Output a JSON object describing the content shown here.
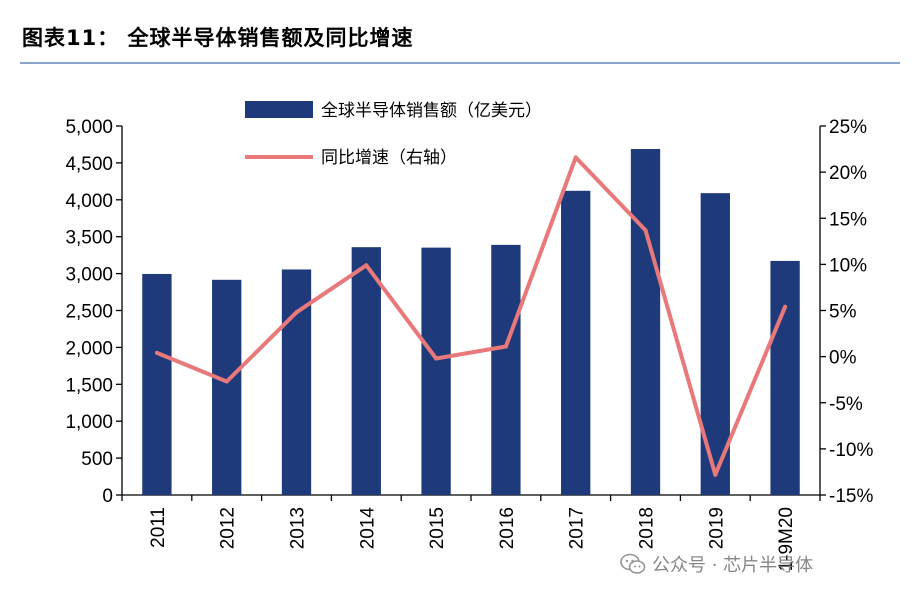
{
  "title": "图表11：  全球半导体销售额及同比增速",
  "watermark": "公众号 · 芯片半导体",
  "colors": {
    "bar": "#1f3a7a",
    "line": "#e8787a",
    "rule": "#8aa7c9"
  },
  "chart_data": {
    "type": "bar+line",
    "categories": [
      "2011",
      "2012",
      "2013",
      "2014",
      "2015",
      "2016",
      "2017",
      "2018",
      "2019",
      "1-9M20"
    ],
    "series": [
      {
        "name": "全球半导体销售额（亿美元）",
        "type": "bar",
        "axis": "left",
        "values": [
          2995,
          2916,
          3056,
          3358,
          3352,
          3389,
          4122,
          4688,
          4090,
          3172
        ]
      },
      {
        "name": "同比增速（右轴）",
        "type": "line",
        "axis": "right",
        "values": [
          0.4,
          -2.7,
          4.8,
          9.9,
          -0.2,
          1.1,
          21.6,
          13.7,
          -12.8,
          5.4
        ]
      }
    ],
    "left_axis": {
      "min": 0,
      "max": 5000,
      "step": 500,
      "tick_labels": [
        "0",
        "500",
        "1,000",
        "1,500",
        "2,000",
        "2,500",
        "3,000",
        "3,500",
        "4,000",
        "4,500",
        "5,000"
      ]
    },
    "right_axis": {
      "min": -15,
      "max": 25,
      "step": 5,
      "tick_labels": [
        "-15%",
        "-10%",
        "-5%",
        "0%",
        "5%",
        "10%",
        "15%",
        "20%",
        "25%"
      ]
    },
    "legend_position": "top-left",
    "grid": false
  }
}
